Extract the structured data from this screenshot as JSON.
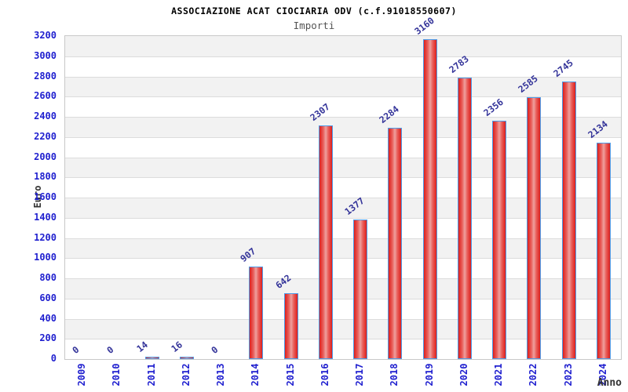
{
  "header": {
    "title": "ASSOCIAZIONE ACAT CIOCIARIA ODV (c.f.91018550607)",
    "subtitle": "Importi"
  },
  "chart_data": {
    "type": "bar",
    "title": "ASSOCIAZIONE ACAT CIOCIARIA ODV (c.f.91018550607)",
    "subtitle": "Importi",
    "xlabel": "Anno",
    "ylabel": "Euro",
    "categories": [
      "2009",
      "2010",
      "2011",
      "2012",
      "2013",
      "2014",
      "2015",
      "2016",
      "2017",
      "2018",
      "2019",
      "2020",
      "2021",
      "2022",
      "2023",
      "2024"
    ],
    "values": [
      0,
      0,
      14,
      16,
      0,
      907,
      642,
      2307,
      1377,
      2284,
      3160,
      2783,
      2356,
      2585,
      2745,
      2134
    ],
    "ylim": [
      0,
      3200
    ],
    "ytick_step": 200,
    "grid": true,
    "legend": "none",
    "colors": {
      "title": "#000000",
      "subtitle": "#555555",
      "tick_label": "#2020cf",
      "value_label": "#333399",
      "axis_label": "#333333",
      "bar_border": "#4d9be8",
      "bar_fill_edge": "#dd1f1c",
      "bar_fill_mid": "#e95f5b",
      "bar_fill_center": "#efa09e",
      "band_gray": "#f2f2f2",
      "band_white": "#ffffff",
      "gridline": "#dcdcdc",
      "plot_border": "#c8c8c8"
    }
  }
}
